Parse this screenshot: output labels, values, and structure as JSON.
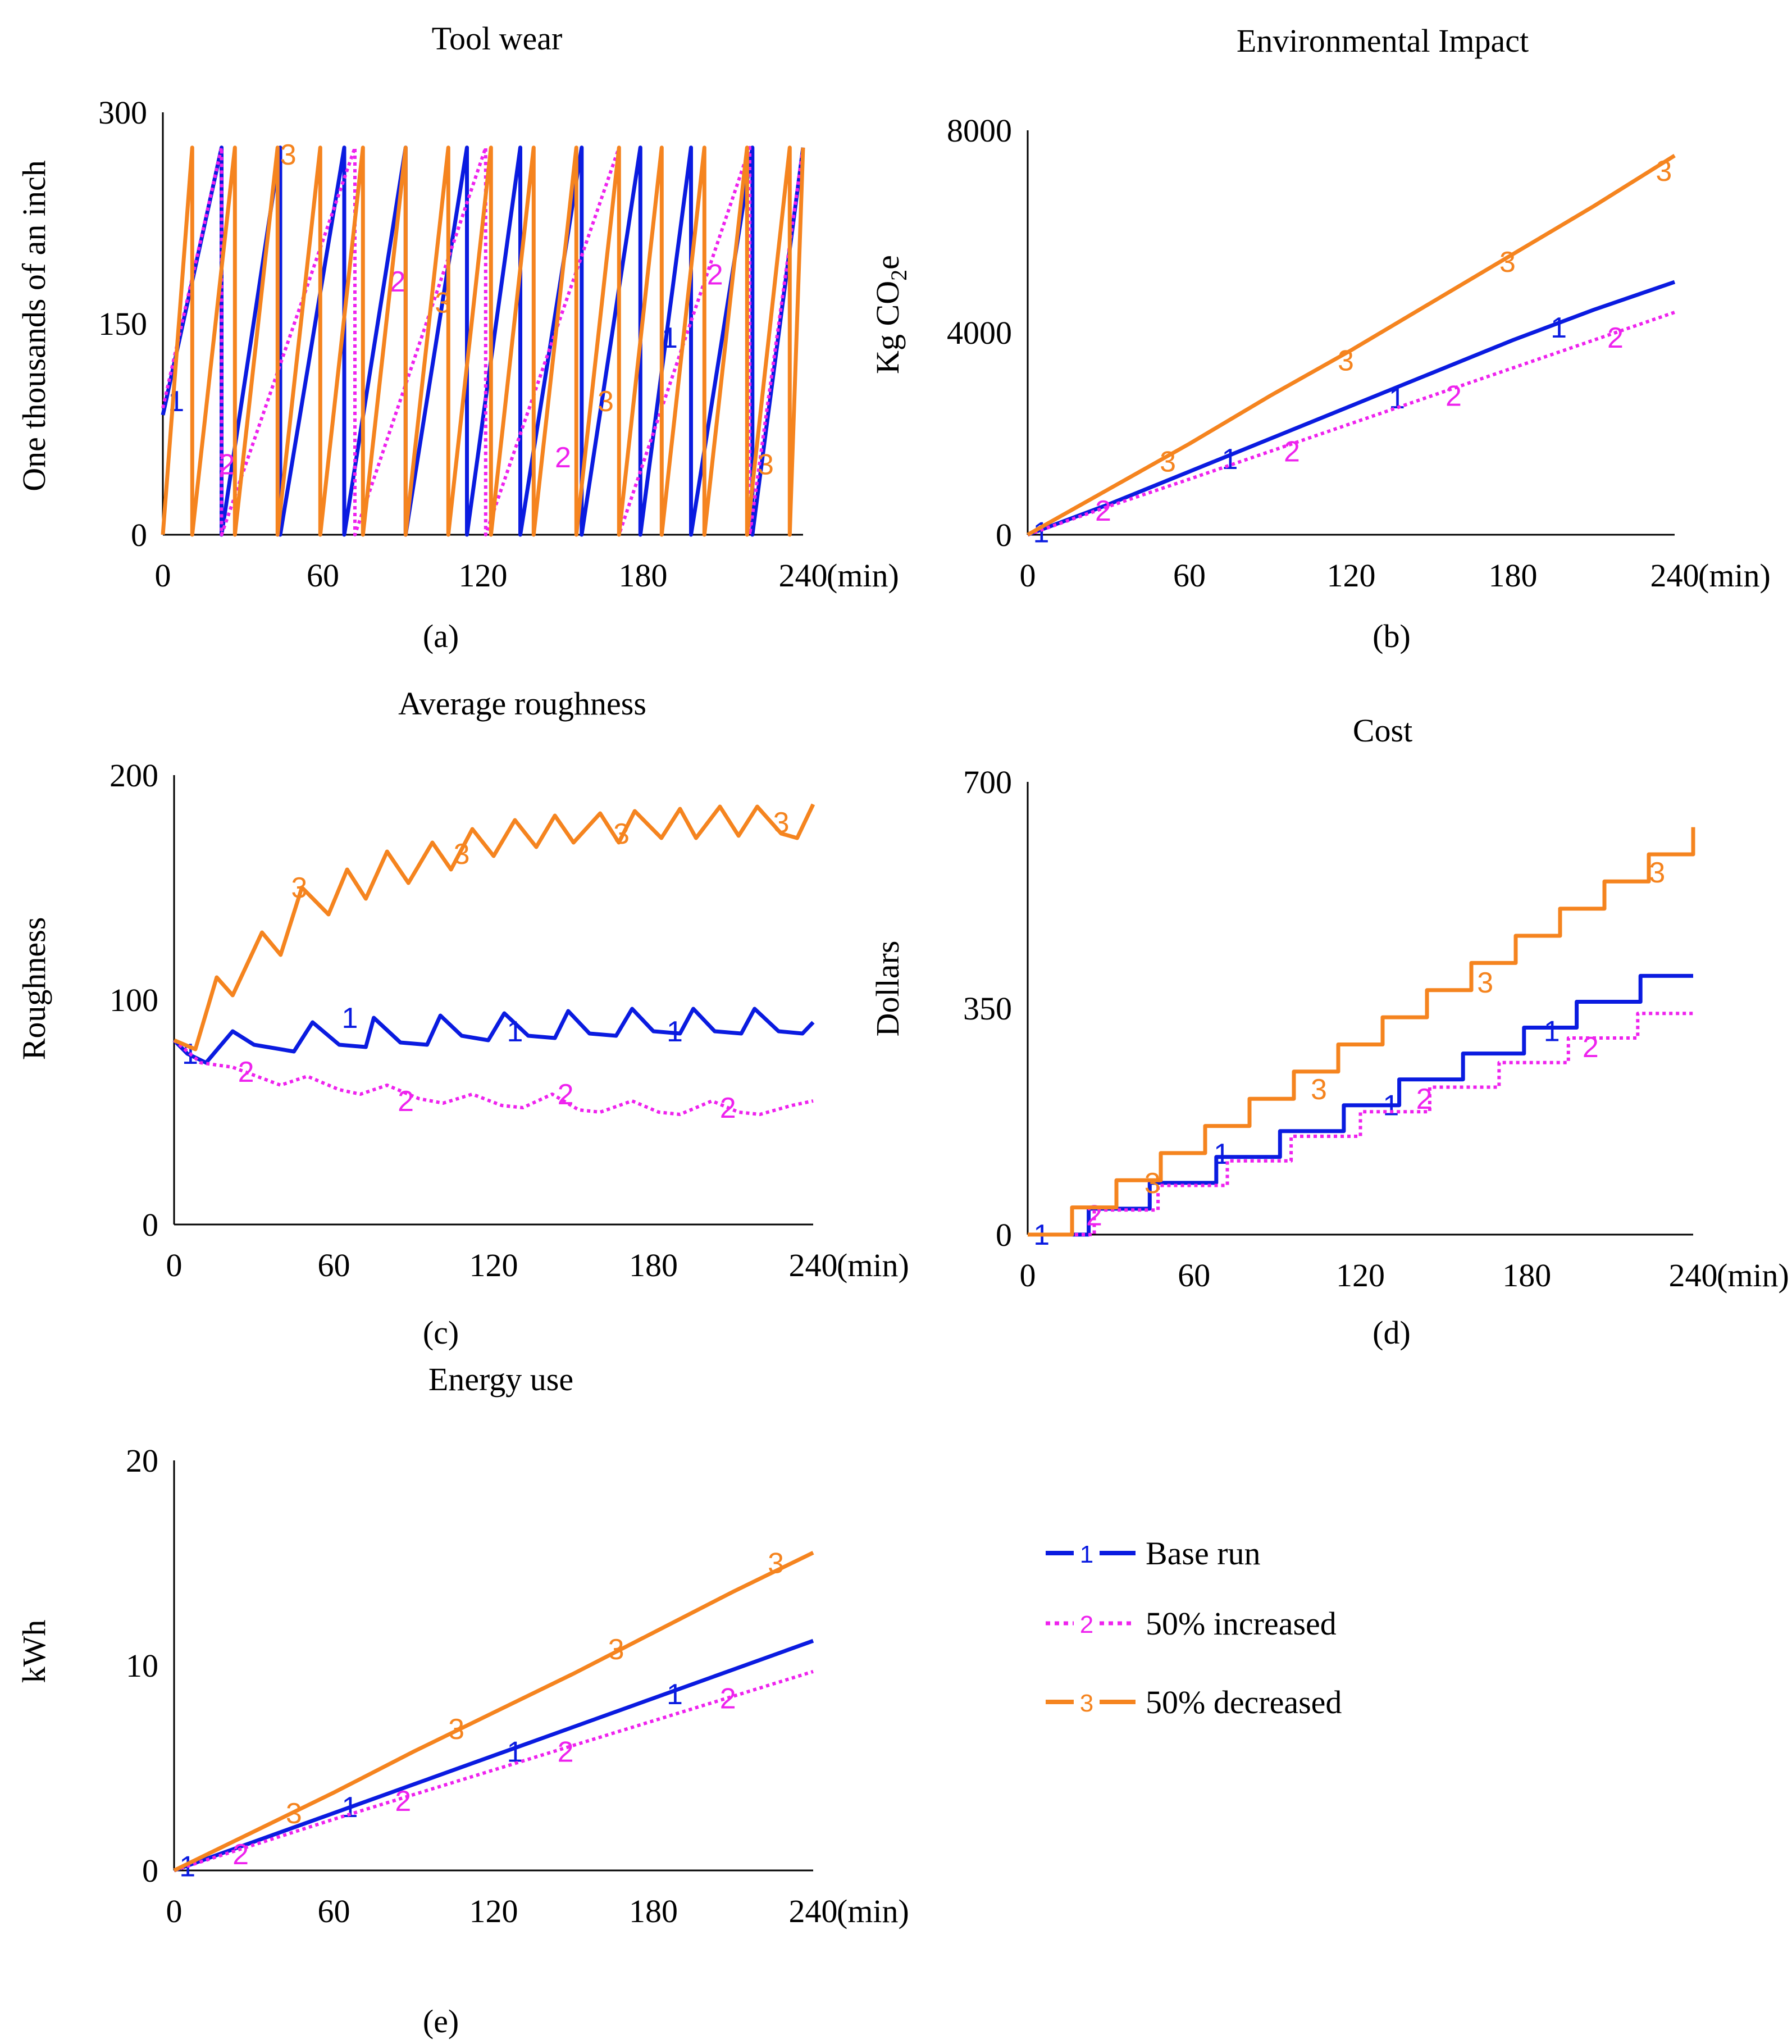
{
  "colors": {
    "base": "#0a1be0",
    "increased": "#ee22ee",
    "decreased": "#f5841f"
  },
  "legend": [
    {
      "marker": "1",
      "label": "Base run",
      "color": "#0a1be0",
      "dash": "solid"
    },
    {
      "marker": "2",
      "label": "50% increased",
      "color": "#ee22ee",
      "dash": "dotted"
    },
    {
      "marker": "3",
      "label": "50% decreased",
      "color": "#f5841f",
      "dash": "solid"
    }
  ],
  "chart_data": [
    {
      "id": "a",
      "type": "line",
      "title": "Tool wear",
      "caption": "(a)",
      "ylabel": "One thousands of an inch",
      "xlabel": "(min)",
      "xlim": [
        0,
        240
      ],
      "ylim": [
        0,
        300
      ],
      "xticks": [
        "0",
        "60",
        "120",
        "180",
        "240"
      ],
      "xtick_values": [
        0,
        60,
        120,
        180,
        240
      ],
      "yticks": [
        "0",
        "150",
        "300"
      ],
      "ytick_values": [
        0,
        150,
        300
      ],
      "series": [
        {
          "name": "Base run",
          "marker": "1",
          "color": "#0a1be0",
          "dash": "solid",
          "kind": "sawtooth",
          "start": 85,
          "max": 275,
          "resets": [
            22,
            44,
            68,
            91,
            114,
            134,
            157,
            179,
            198,
            221
          ],
          "label_positions": [
            [
              5,
              95
            ],
            [
              190,
              140
            ]
          ]
        },
        {
          "name": "50% increased",
          "marker": "2",
          "color": "#ee22ee",
          "dash": "dotted",
          "kind": "sawtooth",
          "start": 90,
          "max": 275,
          "resets": [
            22,
            72,
            121,
            171,
            220
          ],
          "label_positions": [
            [
              24,
              50
            ],
            [
              88,
              180
            ],
            [
              150,
              55
            ],
            [
              207,
              185
            ]
          ]
        },
        {
          "name": "50% decreased",
          "marker": "3",
          "color": "#f5841f",
          "dash": "solid",
          "kind": "sawtooth",
          "start": 0,
          "max": 275,
          "resets": [
            11,
            27,
            43,
            59,
            75,
            91,
            107,
            123,
            139,
            155,
            171,
            187,
            203,
            219,
            235
          ],
          "label_positions": [
            [
              47,
              270
            ],
            [
              105,
              165
            ],
            [
              166,
              95
            ],
            [
              226,
              50
            ]
          ]
        }
      ]
    },
    {
      "id": "b",
      "type": "line",
      "title": "Environmental Impact",
      "caption": "(b)",
      "ylabel": "Kg CO2e",
      "ylabel_main": "Kg CO",
      "ylabel_sub": "2",
      "ylabel_end": "e",
      "xlabel": "(min)",
      "xlim": [
        0,
        240
      ],
      "ylim": [
        0,
        8000
      ],
      "xticks": [
        "0",
        "60",
        "120",
        "180",
        "240"
      ],
      "xtick_values": [
        0,
        60,
        120,
        180,
        240
      ],
      "yticks": [
        "0",
        "4000",
        "8000"
      ],
      "ytick_values": [
        0,
        4000,
        8000
      ],
      "series": [
        {
          "name": "Base run",
          "marker": "1",
          "color": "#0a1be0",
          "dash": "solid",
          "x": [
            0,
            30,
            60,
            90,
            120,
            150,
            180,
            210,
            240
          ],
          "y": [
            0,
            600,
            1250,
            1900,
            2550,
            3200,
            3850,
            4450,
            5000
          ],
          "label_positions": [
            [
              5,
              50
            ],
            [
              75,
              1500
            ],
            [
              137,
              2700
            ],
            [
              197,
              4100
            ]
          ]
        },
        {
          "name": "50% increased",
          "marker": "2",
          "color": "#ee22ee",
          "dash": "dotted",
          "x": [
            0,
            30,
            60,
            90,
            120,
            150,
            180,
            210,
            240
          ],
          "y": [
            0,
            560,
            1100,
            1650,
            2200,
            2750,
            3300,
            3850,
            4400
          ],
          "label_positions": [
            [
              28,
              480
            ],
            [
              98,
              1650
            ],
            [
              158,
              2750
            ],
            [
              218,
              3900
            ]
          ]
        },
        {
          "name": "50% decreased",
          "marker": "3",
          "color": "#f5841f",
          "dash": "solid",
          "x": [
            0,
            30,
            60,
            90,
            120,
            150,
            180,
            210,
            240
          ],
          "y": [
            0,
            900,
            1800,
            2750,
            3650,
            4600,
            5550,
            6500,
            7500
          ],
          "label_positions": [
            [
              52,
              1450
            ],
            [
              118,
              3450
            ],
            [
              178,
              5400
            ],
            [
              236,
              7200
            ]
          ]
        }
      ]
    },
    {
      "id": "c",
      "type": "line",
      "title": "Average roughness",
      "caption": "(c)",
      "ylabel": "Roughness",
      "xlabel": "(min)",
      "xlim": [
        0,
        240
      ],
      "ylim": [
        0,
        200
      ],
      "xticks": [
        "0",
        "60",
        "120",
        "180",
        "240"
      ],
      "xtick_values": [
        0,
        60,
        120,
        180,
        240
      ],
      "yticks": [
        "0",
        "100",
        "200"
      ],
      "ytick_values": [
        0,
        100,
        200
      ],
      "series": [
        {
          "name": "Base run",
          "marker": "1",
          "color": "#0a1be0",
          "dash": "solid",
          "x": [
            0,
            5,
            12,
            22,
            30,
            45,
            52,
            62,
            72,
            75,
            85,
            95,
            100,
            108,
            118,
            124,
            133,
            143,
            148,
            156,
            166,
            172,
            180,
            190,
            195,
            203,
            213,
            218,
            227,
            236,
            240
          ],
          "y": [
            82,
            76,
            72,
            86,
            80,
            77,
            90,
            80,
            79,
            92,
            81,
            80,
            93,
            84,
            82,
            94,
            84,
            83,
            95,
            85,
            84,
            96,
            86,
            85,
            96,
            86,
            85,
            96,
            86,
            85,
            90
          ],
          "label_positions": [
            [
              6,
              76
            ],
            [
              66,
              92
            ],
            [
              128,
              86
            ],
            [
              188,
              86
            ]
          ]
        },
        {
          "name": "50% increased",
          "marker": "2",
          "color": "#ee22ee",
          "dash": "dotted",
          "x": [
            0,
            10,
            22,
            40,
            50,
            62,
            70,
            80,
            92,
            101,
            112,
            123,
            131,
            142,
            152,
            160,
            172,
            182,
            190,
            202,
            212,
            220,
            232,
            240
          ],
          "y": [
            82,
            72,
            70,
            62,
            66,
            60,
            58,
            62,
            56,
            54,
            58,
            53,
            52,
            58,
            51,
            50,
            55,
            50,
            49,
            55,
            50,
            49,
            53,
            55
          ],
          "label_positions": [
            [
              27,
              68
            ],
            [
              87,
              55
            ],
            [
              147,
              58
            ],
            [
              208,
              52
            ]
          ]
        },
        {
          "name": "50% decreased",
          "marker": "3",
          "color": "#f5841f",
          "dash": "solid",
          "x": [
            0,
            8,
            16,
            22,
            33,
            40,
            48,
            58,
            65,
            72,
            80,
            88,
            97,
            104,
            112,
            120,
            128,
            136,
            143,
            150,
            160,
            167,
            173,
            183,
            190,
            196,
            205,
            212,
            219,
            228,
            234,
            240
          ],
          "y": [
            82,
            78,
            110,
            102,
            130,
            120,
            150,
            138,
            158,
            145,
            166,
            152,
            170,
            158,
            176,
            164,
            180,
            168,
            182,
            170,
            183,
            170,
            184,
            172,
            185,
            172,
            186,
            173,
            186,
            174,
            172,
            187
          ],
          "label_positions": [
            [
              47,
              150
            ],
            [
              108,
              165
            ],
            [
              168,
              174
            ],
            [
              228,
              179
            ]
          ]
        }
      ]
    },
    {
      "id": "d",
      "type": "line",
      "title": "Cost",
      "caption": "(d)",
      "ylabel": "Dollars",
      "xlabel": "(min)",
      "xlim": [
        0,
        240
      ],
      "ylim": [
        0,
        700
      ],
      "xticks": [
        "0",
        "60",
        "120",
        "180",
        "240"
      ],
      "xtick_values": [
        0,
        60,
        120,
        180,
        240
      ],
      "yticks": [
        "0",
        "350",
        "700"
      ],
      "ytick_values": [
        0,
        350,
        700
      ],
      "series": [
        {
          "name": "Base run",
          "marker": "1",
          "color": "#0a1be0",
          "dash": "solid",
          "kind": "steps",
          "x": [
            0,
            22,
            44,
            68,
            91,
            114,
            134,
            157,
            179,
            198,
            221,
            240
          ],
          "y": [
            0,
            40,
            80,
            120,
            160,
            200,
            240,
            280,
            320,
            360,
            400,
            400
          ],
          "label_positions": [
            [
              5,
              0
            ],
            [
              70,
              125
            ],
            [
              131,
              200
            ],
            [
              189,
              315
            ]
          ]
        },
        {
          "name": "50% increased",
          "marker": "2",
          "color": "#ee22ee",
          "dash": "dotted",
          "x": [
            0,
            24,
            47,
            72,
            95,
            120,
            145,
            170,
            195,
            220,
            240
          ],
          "y": [
            0,
            38,
            76,
            114,
            152,
            190,
            228,
            266,
            304,
            342,
            342
          ],
          "kind": "steps",
          "label_positions": [
            [
              24,
              30
            ],
            [
              143,
              210
            ],
            [
              203,
              290
            ]
          ]
        },
        {
          "name": "50% decreased",
          "marker": "3",
          "color": "#f5841f",
          "dash": "solid",
          "kind": "steps",
          "x": [
            0,
            16,
            32,
            48,
            64,
            80,
            96,
            112,
            128,
            144,
            160,
            176,
            192,
            208,
            224,
            240
          ],
          "y": [
            0,
            42,
            84,
            126,
            168,
            210,
            252,
            294,
            336,
            378,
            420,
            462,
            504,
            546,
            588,
            630
          ],
          "label_positions": [
            [
              45,
              80
            ],
            [
              105,
              225
            ],
            [
              165,
              390
            ],
            [
              227,
              560
            ]
          ]
        }
      ]
    },
    {
      "id": "e",
      "type": "line",
      "title": "Energy use",
      "caption": "(e)",
      "ylabel": "kWh",
      "xlabel": "(min)",
      "xlim": [
        0,
        240
      ],
      "ylim": [
        0,
        20
      ],
      "xticks": [
        "0",
        "60",
        "120",
        "180",
        "240"
      ],
      "xtick_values": [
        0,
        60,
        120,
        180,
        240
      ],
      "yticks": [
        "0",
        "10",
        "20"
      ],
      "ytick_values": [
        0,
        10,
        20
      ],
      "series": [
        {
          "name": "Base run",
          "marker": "1",
          "color": "#0a1be0",
          "dash": "solid",
          "x": [
            0,
            30,
            60,
            90,
            120,
            150,
            180,
            210,
            240
          ],
          "y": [
            0,
            1.4,
            2.8,
            4.2,
            5.6,
            7.0,
            8.4,
            9.8,
            11.2
          ],
          "label_positions": [
            [
              5,
              0.2
            ],
            [
              66,
              3.1
            ],
            [
              128,
              5.8
            ],
            [
              188,
              8.6
            ]
          ]
        },
        {
          "name": "50% increased",
          "marker": "2",
          "color": "#ee22ee",
          "dash": "dotted",
          "x": [
            0,
            30,
            60,
            90,
            120,
            150,
            180,
            210,
            240
          ],
          "y": [
            0,
            1.25,
            2.5,
            3.7,
            4.9,
            6.1,
            7.3,
            8.5,
            9.7
          ],
          "label_positions": [
            [
              25,
              0.8
            ],
            [
              86,
              3.4
            ],
            [
              147,
              5.8
            ],
            [
              208,
              8.4
            ]
          ]
        },
        {
          "name": "50% decreased",
          "marker": "3",
          "color": "#f5841f",
          "dash": "solid",
          "x": [
            0,
            30,
            60,
            90,
            120,
            150,
            180,
            210,
            240
          ],
          "y": [
            0,
            1.9,
            3.8,
            5.8,
            7.7,
            9.6,
            11.6,
            13.6,
            15.5
          ],
          "label_positions": [
            [
              45,
              2.8
            ],
            [
              106,
              6.9
            ],
            [
              166,
              10.8
            ],
            [
              226,
              15.0
            ]
          ]
        }
      ]
    }
  ]
}
